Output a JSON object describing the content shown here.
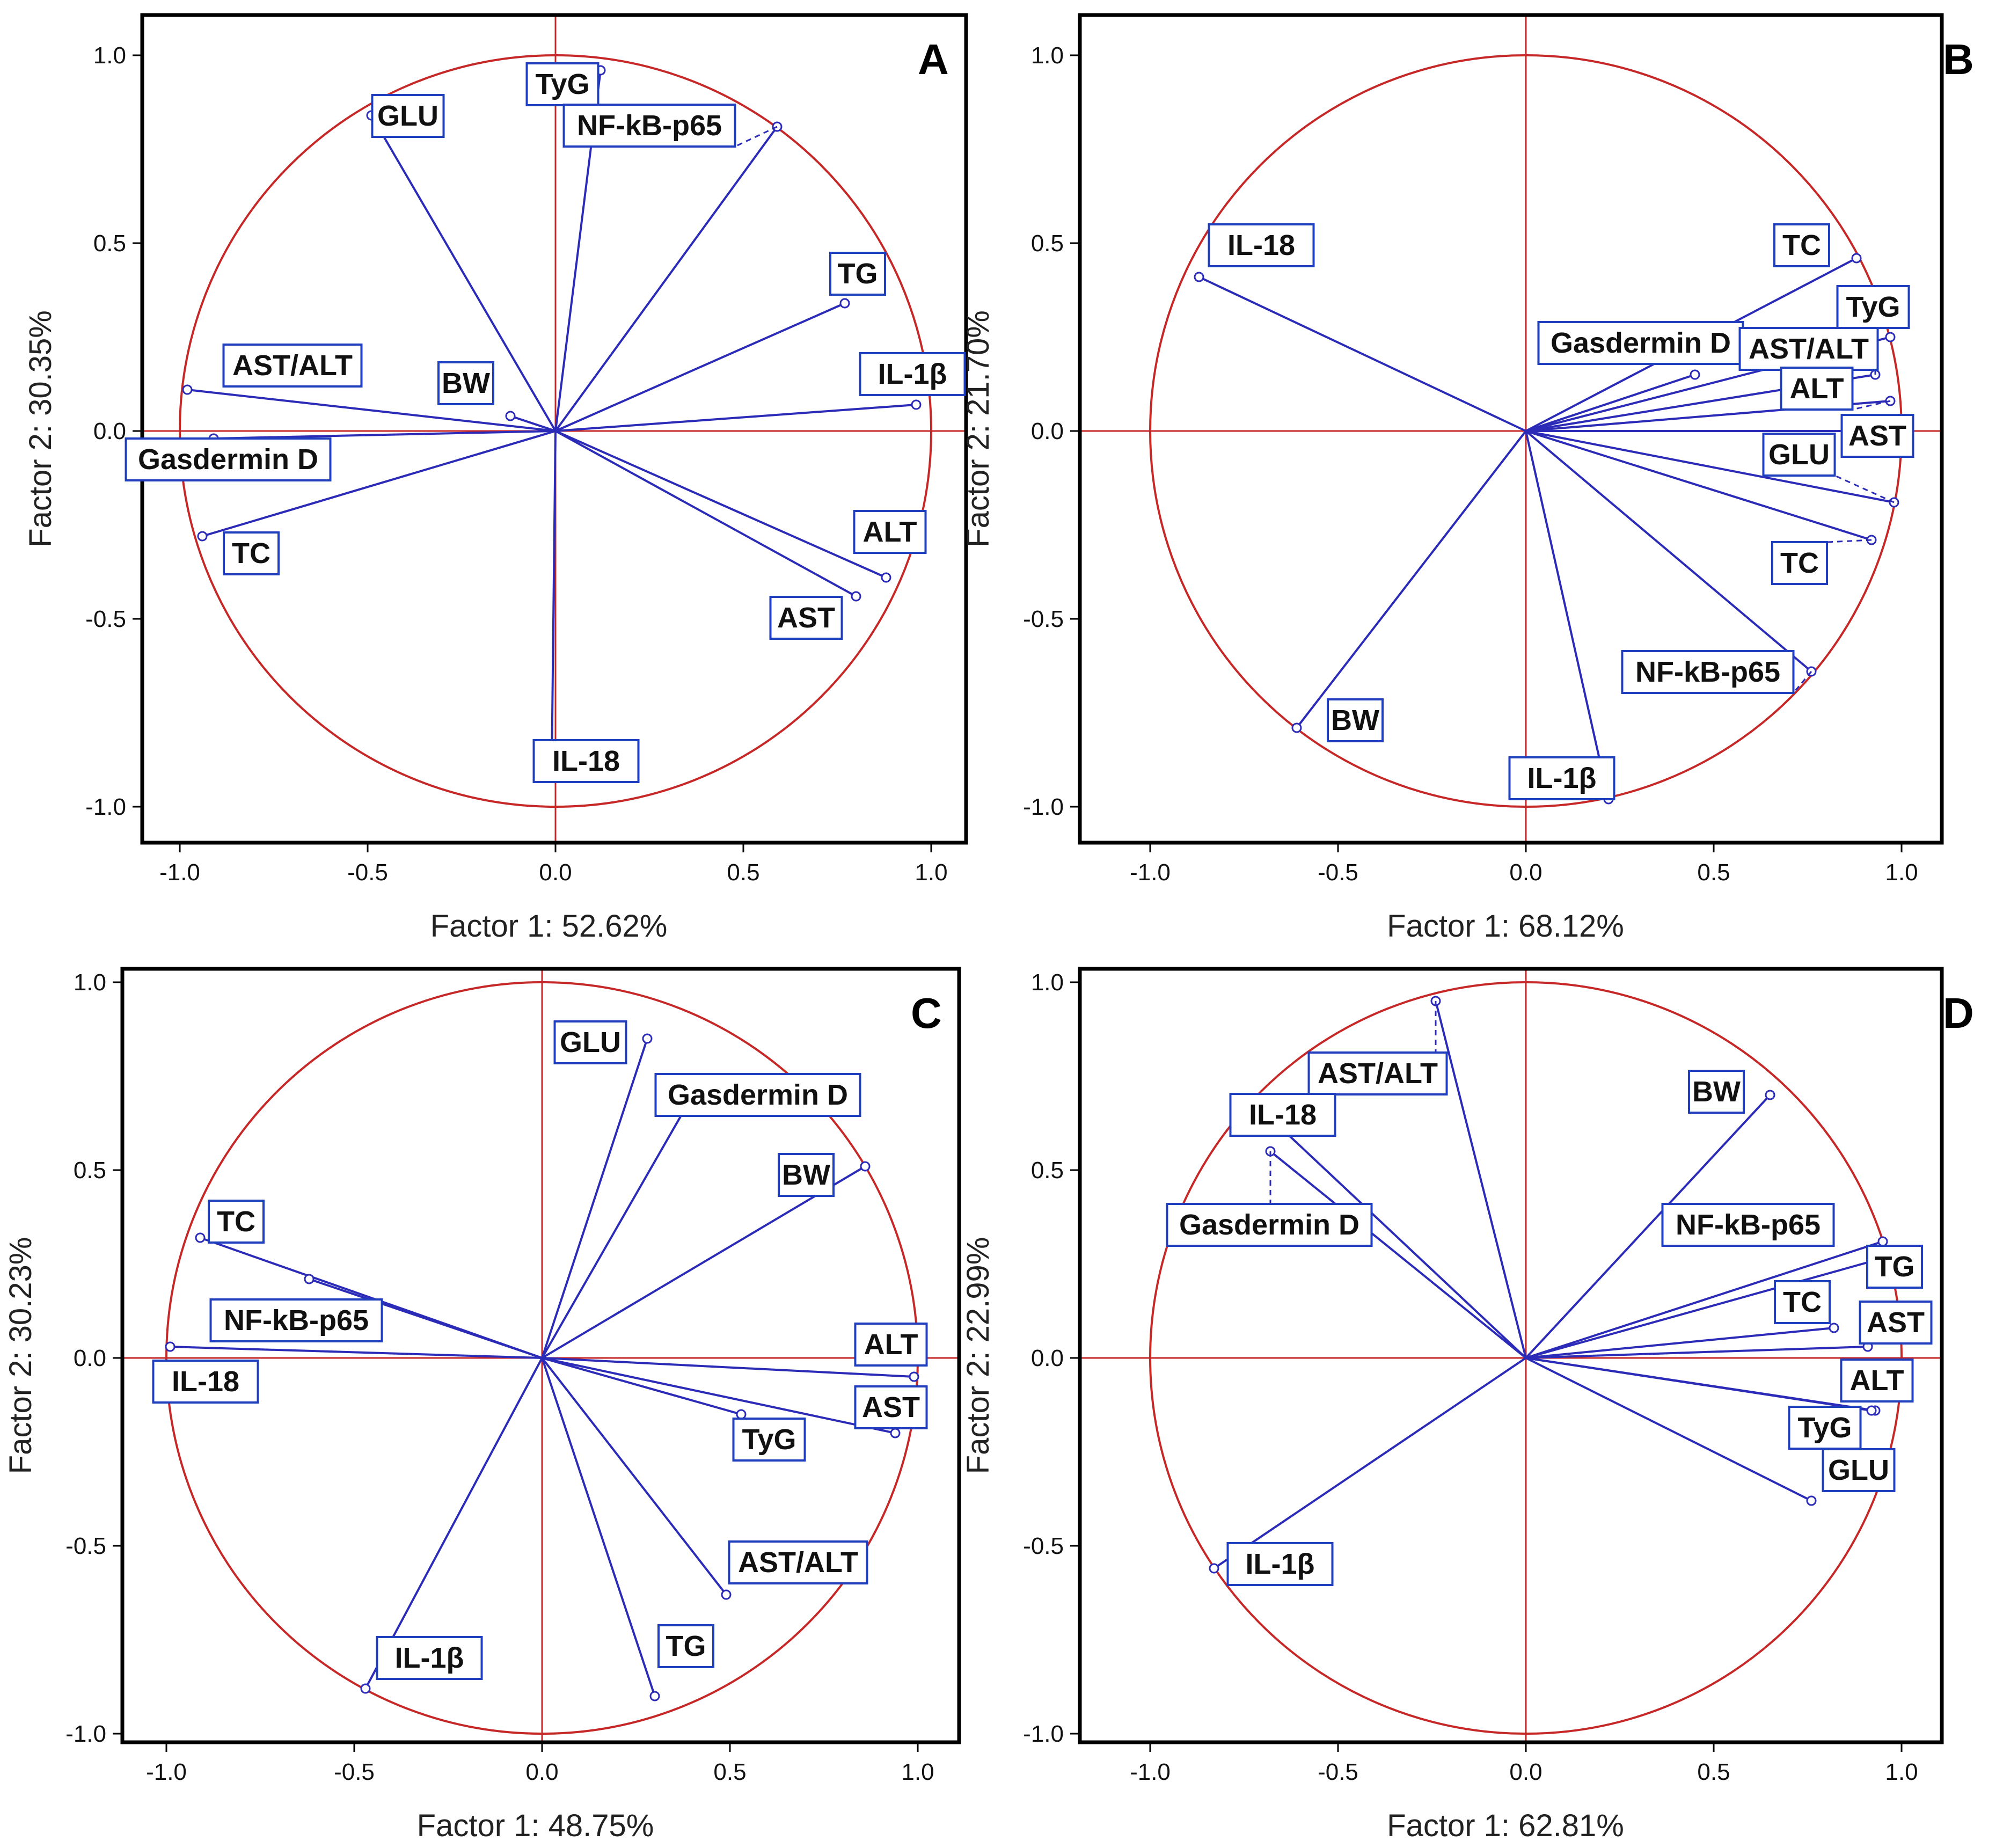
{
  "colors": {
    "circle": "#c62828",
    "vector": "#2b2bb8",
    "label_border": "#1f3fbf",
    "frame": "#000000"
  },
  "chart_data": [
    {
      "panel": "A",
      "type": "scatter",
      "subtype": "pca-correlation-circle",
      "xlabel": "Factor 1: 52.62%",
      "ylabel": "Factor 2: 30.35%",
      "xlim": [
        -1.1,
        1.1
      ],
      "ylim": [
        -1.1,
        1.1
      ],
      "xticks": [
        "-1.0",
        "-0.5",
        "0.0",
        "0.5",
        "1.0"
      ],
      "yticks": [
        "-1.0",
        "-0.5",
        "0.0",
        "0.5",
        "1.0"
      ],
      "variables": [
        {
          "name": "GLU",
          "x": -0.49,
          "y": 0.84
        },
        {
          "name": "TyG",
          "x": 0.12,
          "y": 0.96
        },
        {
          "name": "NF-kB-p65",
          "x": 0.59,
          "y": 0.81
        },
        {
          "name": "TG",
          "x": 0.77,
          "y": 0.34
        },
        {
          "name": "IL-1β",
          "x": 0.96,
          "y": 0.07
        },
        {
          "name": "AST/ALT",
          "x": -0.98,
          "y": 0.11
        },
        {
          "name": "BW",
          "x": -0.12,
          "y": 0.04
        },
        {
          "name": "Gasdermin D",
          "x": -0.91,
          "y": -0.02
        },
        {
          "name": "TC",
          "x": -0.94,
          "y": -0.28
        },
        {
          "name": "ALT",
          "x": 0.88,
          "y": -0.39
        },
        {
          "name": "AST",
          "x": 0.8,
          "y": -0.44
        },
        {
          "name": "IL-18",
          "x": -0.01,
          "y": -0.89
        }
      ]
    },
    {
      "panel": "B",
      "type": "scatter",
      "subtype": "pca-correlation-circle",
      "xlabel": "Factor 1: 68.12%",
      "ylabel": "Factor 2: 21.70%",
      "xlim": [
        -1.1,
        1.1
      ],
      "ylim": [
        -1.1,
        1.1
      ],
      "xticks": [
        "-1.0",
        "-0.5",
        "0.0",
        "0.5",
        "1.0"
      ],
      "yticks": [
        "-1.0",
        "-0.5",
        "0.0",
        "0.5",
        "1.0"
      ],
      "variables": [
        {
          "name": "IL-18",
          "x": -0.87,
          "y": 0.41
        },
        {
          "name": "TC",
          "x": 0.88,
          "y": 0.46
        },
        {
          "name": "TyG",
          "x": 0.97,
          "y": 0.25
        },
        {
          "name": "Gasdermin D",
          "x": 0.45,
          "y": 0.15
        },
        {
          "name": "AST/ALT",
          "x": 0.93,
          "y": 0.15
        },
        {
          "name": "ALT",
          "x": 0.97,
          "y": 0.08
        },
        {
          "name": "AST",
          "x": 0.99,
          "y": 0.0
        },
        {
          "name": "GLU",
          "x": 0.98,
          "y": -0.19
        },
        {
          "name": "TC",
          "x": 0.92,
          "y": -0.29
        },
        {
          "name": "NF-kB-p65",
          "x": 0.76,
          "y": -0.64
        },
        {
          "name": "BW",
          "x": -0.61,
          "y": -0.79
        },
        {
          "name": "IL-1β",
          "x": 0.22,
          "y": -0.98
        }
      ]
    },
    {
      "panel": "C",
      "type": "scatter",
      "subtype": "pca-correlation-circle",
      "xlabel": "Factor 1: 48.75%",
      "ylabel": "Factor 2: 30.23%",
      "xlim": [
        -1.1,
        1.1
      ],
      "ylim": [
        -1.1,
        1.1
      ],
      "xticks": [
        "-1.0",
        "-0.5",
        "0.0",
        "0.5",
        "1.0"
      ],
      "yticks": [
        "-1.0",
        "-0.5",
        "0.0",
        "0.5",
        "1.0"
      ],
      "variables": [
        {
          "name": "GLU",
          "x": 0.28,
          "y": 0.85
        },
        {
          "name": "Gasdermin D",
          "x": 0.39,
          "y": 0.68
        },
        {
          "name": "BW",
          "x": 0.86,
          "y": 0.51
        },
        {
          "name": "TC",
          "x": -0.91,
          "y": 0.32
        },
        {
          "name": "NF-kB-p65",
          "x": -0.62,
          "y": 0.21
        },
        {
          "name": "IL-18",
          "x": -0.99,
          "y": 0.03
        },
        {
          "name": "ALT",
          "x": 0.99,
          "y": -0.05
        },
        {
          "name": "AST",
          "x": 0.94,
          "y": -0.2
        },
        {
          "name": "TyG",
          "x": 0.53,
          "y": -0.15
        },
        {
          "name": "AST/ALT",
          "x": 0.49,
          "y": -0.63
        },
        {
          "name": "TG",
          "x": 0.3,
          "y": -0.9
        },
        {
          "name": "IL-1β",
          "x": -0.47,
          "y": -0.88
        }
      ]
    },
    {
      "panel": "D",
      "type": "scatter",
      "subtype": "pca-correlation-circle",
      "xlabel": "Factor 1: 62.81%",
      "ylabel": "Factor 2: 22.99%",
      "xlim": [
        -1.1,
        1.1
      ],
      "ylim": [
        -1.1,
        1.1
      ],
      "xticks": [
        "-1.0",
        "-0.5",
        "0.0",
        "0.5",
        "1.0"
      ],
      "yticks": [
        "-1.0",
        "-0.5",
        "0.0",
        "0.5",
        "1.0"
      ],
      "variables": [
        {
          "name": "AST/ALT",
          "x": -0.24,
          "y": 0.95
        },
        {
          "name": "IL-18",
          "x": -0.66,
          "y": 0.62
        },
        {
          "name": "Gasdermin D",
          "x": -0.68,
          "y": 0.55
        },
        {
          "name": "BW",
          "x": 0.65,
          "y": 0.7
        },
        {
          "name": "NF-kB-p65",
          "x": 0.95,
          "y": 0.31
        },
        {
          "name": "TG",
          "x": 0.93,
          "y": 0.26
        },
        {
          "name": "TC",
          "x": 0.82,
          "y": 0.08
        },
        {
          "name": "AST",
          "x": 0.91,
          "y": 0.03
        },
        {
          "name": "ALT",
          "x": 0.93,
          "y": -0.14
        },
        {
          "name": "TyG",
          "x": 0.92,
          "y": -0.14
        },
        {
          "name": "GLU",
          "x": 0.76,
          "y": -0.38
        },
        {
          "name": "IL-1β",
          "x": -0.83,
          "y": -0.56
        }
      ]
    }
  ]
}
